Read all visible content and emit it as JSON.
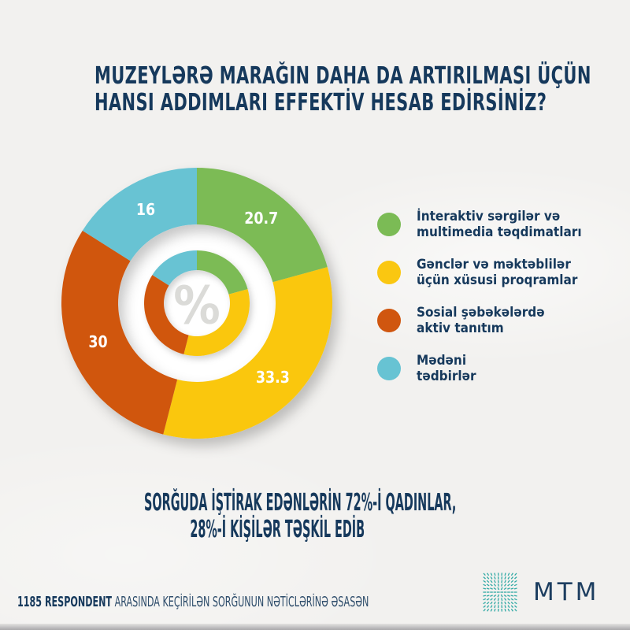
{
  "title": {
    "line1": "MUZEYLƏRƏ MARAĞIN DAHA DA ARTIRILMASI ÜÇÜN",
    "line2": "HANSI ADDIMLARI EFFEKTİV HESAB EDİRSİNİZ?"
  },
  "chart_data": {
    "type": "pie",
    "subtype": "double-ring-donut",
    "unit": "%",
    "categories": [
      "İnteraktiv sərgilər və multimedia təqdimatları",
      "Gənclər və məktəblilər üçün xüsusi proqramlar",
      "Sosial şəbəkələrdə aktiv tanıtım",
      "Mədəni tədbirlər"
    ],
    "values": [
      20.7,
      33.3,
      30,
      16
    ],
    "display_labels": [
      "20.7",
      "33.3",
      "30",
      "16"
    ],
    "colors": [
      "#7BBB55",
      "#FAC711",
      "#D0560F",
      "#67C3D3"
    ],
    "start_angle_deg": 0,
    "direction": "clockwise",
    "center_symbol": "%",
    "legend_position": "right",
    "geometry": {
      "outer_ring": [
        100,
        172
      ],
      "inner_ring": [
        42,
        67
      ],
      "label_radius": 135
    }
  },
  "legend": {
    "items": [
      {
        "line1": "İnteraktiv sərgilər və",
        "line2": "multimedia təqdimatları"
      },
      {
        "line1": "Gənclər və məktəblilər",
        "line2": "üçün xüsusi proqramlar"
      },
      {
        "line1": "Sosial şəbəkələrdə",
        "line2": "aktiv tanıtım"
      },
      {
        "line1": "Mədəni",
        "line2": "tədbirlər"
      }
    ]
  },
  "statement": {
    "line1": "SORĞUDA İŞTİRAK EDƏNLƏRİN 72%-İ QADINLAR,",
    "line2": "28%-İ KİŞİLƏR TƏŞKİL EDİB"
  },
  "footer": {
    "bold": "1185 RESPONDENT",
    "rest": "ARASINDA KEÇİRİLƏN SORĞUNUN NƏTİCLƏRİNƏ ƏSASƏN"
  },
  "brand": {
    "name": "MTM",
    "logo_color": "#2FA9A4",
    "text_color": "#1D3E60"
  },
  "colors": {
    "background": "#F2F1EF",
    "navy": "#16395C",
    "percent_symbol": "#DBDBD8",
    "pie_label": "#FFFFFF"
  }
}
